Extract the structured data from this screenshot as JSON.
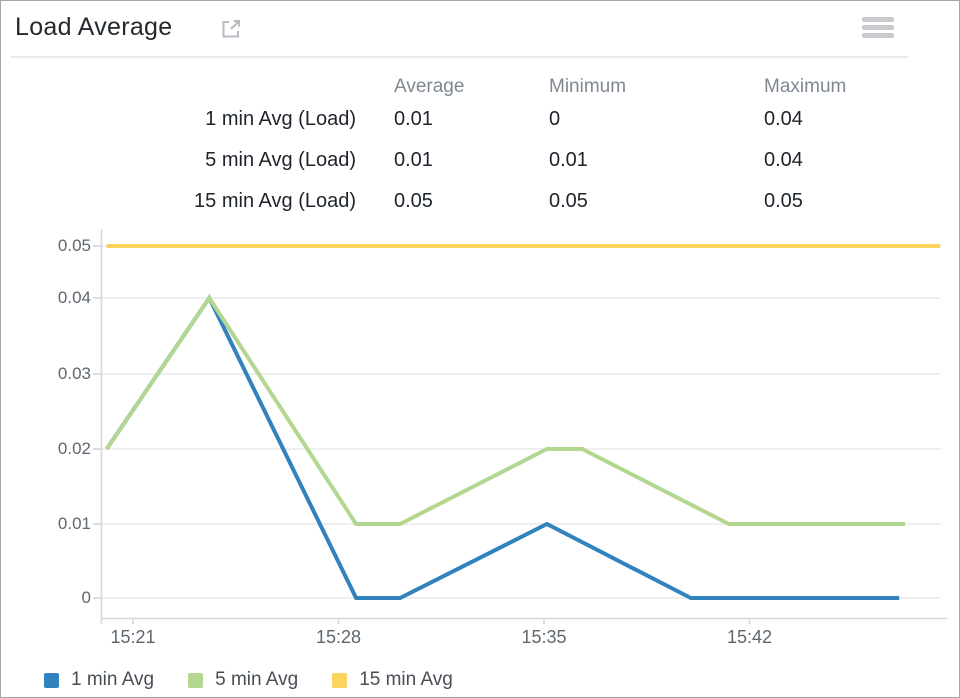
{
  "widget": {
    "title": "Load Average",
    "expand_icon": "open-in-new-window",
    "menu_icon": "hamburger-menu"
  },
  "stats_table": {
    "columns": [
      "Average",
      "Minimum",
      "Maximum"
    ],
    "rows": [
      {
        "label": "1 min Avg (Load)",
        "average": "0.01",
        "minimum": "0",
        "maximum": "0.04"
      },
      {
        "label": "5 min Avg (Load)",
        "average": "0.01",
        "minimum": "0.01",
        "maximum": "0.04"
      },
      {
        "label": "15 min Avg (Load)",
        "average": "0.05",
        "minimum": "0.05",
        "maximum": "0.05"
      }
    ]
  },
  "chart_data": {
    "type": "line",
    "title": "Load Average",
    "xlabel": "",
    "ylabel": "",
    "x_unit": "time of day; point x values are minutes after 15:00",
    "ylim": [
      0,
      0.05
    ],
    "xlim_minutes": [
      19.8,
      48.5
    ],
    "grid": "horizontal",
    "legend_position": "bottom-left",
    "y_ticks": [
      {
        "v": 0.05,
        "label": "0.05"
      },
      {
        "v": 0.04,
        "label": "0.04"
      },
      {
        "v": 0.03,
        "label": "0.03"
      },
      {
        "v": 0.02,
        "label": "0.02"
      },
      {
        "v": 0.01,
        "label": "0.01"
      },
      {
        "v": 0,
        "label": "0"
      }
    ],
    "x_ticks": [
      {
        "t": 21,
        "label": "15:21"
      },
      {
        "t": 28,
        "label": "15:28"
      },
      {
        "t": 35,
        "label": "15:35"
      },
      {
        "t": 42,
        "label": "15:42"
      }
    ],
    "series": [
      {
        "name": "1 min Avg",
        "color": "#3182bd",
        "points": [
          [
            20.1,
            0.02
          ],
          [
            23.6,
            0.04
          ],
          [
            28.6,
            0
          ],
          [
            30.1,
            0
          ],
          [
            35.1,
            0.01
          ],
          [
            40,
            0
          ],
          [
            47.1,
            0
          ]
        ]
      },
      {
        "name": "5 min Avg",
        "color": "#b3d791",
        "points": [
          [
            20.1,
            0.02
          ],
          [
            23.6,
            0.04
          ],
          [
            28.6,
            0.01
          ],
          [
            30.1,
            0.01
          ],
          [
            35.1,
            0.02
          ],
          [
            36.3,
            0.02
          ],
          [
            41.3,
            0.01
          ],
          [
            47.3,
            0.01
          ]
        ]
      },
      {
        "name": "15 min Avg",
        "color": "#fad45f",
        "points": [
          [
            20.1,
            0.05
          ],
          [
            48.5,
            0.05
          ]
        ]
      }
    ]
  }
}
